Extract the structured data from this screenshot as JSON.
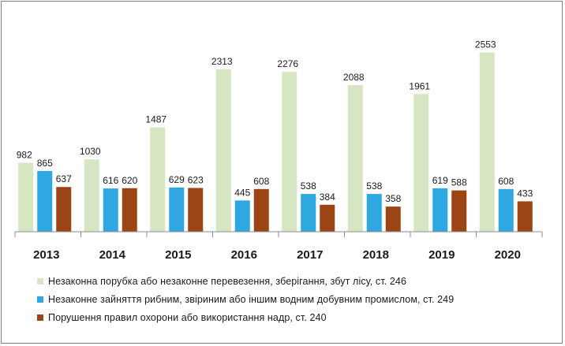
{
  "chart_data": {
    "type": "bar",
    "categories": [
      "2013",
      "2014",
      "2015",
      "2016",
      "2017",
      "2018",
      "2019",
      "2020"
    ],
    "series": [
      {
        "name": "Незаконна порубка або незаконне перевезення, зберігання, збут лісу, ст. 246",
        "color": "#d6e6c2",
        "values": [
          982,
          1030,
          1487,
          2313,
          2276,
          2088,
          1961,
          2553
        ]
      },
      {
        "name": "Незаконне зайняття рибним, звіриним або іншим водним  добувним промислом, ст. 249",
        "color": "#2fa7e0",
        "values": [
          865,
          616,
          629,
          445,
          538,
          538,
          619,
          608
        ]
      },
      {
        "name": "Порушення правил охорони або використання надр, ст. 240",
        "color": "#9b4515",
        "values": [
          637,
          620,
          623,
          608,
          384,
          358,
          588,
          433
        ]
      }
    ],
    "title": "",
    "xlabel": "",
    "ylabel": "",
    "ylim": [
      0,
      2800
    ],
    "grid": false,
    "legend_position": "bottom"
  }
}
